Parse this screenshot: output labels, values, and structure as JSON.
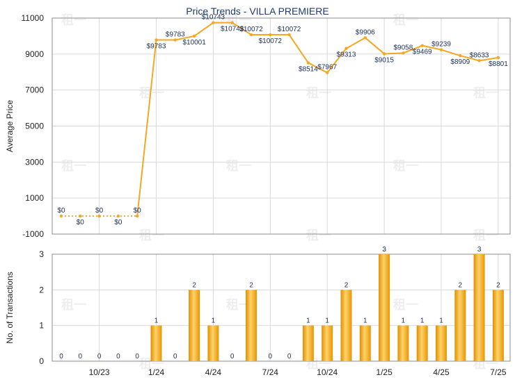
{
  "chart_data": [
    {
      "type": "line",
      "title": "Price Trends - VILLA PREMIERE",
      "ylabel": "Average Price",
      "ylim": [
        -1000,
        11000
      ],
      "yticks": [
        -1000,
        1000,
        3000,
        5000,
        7000,
        9000,
        11000
      ],
      "x": [
        "2023-08",
        "2023-09",
        "2023-10",
        "2023-11",
        "2023-12",
        "2024-01",
        "2024-02",
        "2024-03",
        "2024-04",
        "2024-05",
        "2024-06",
        "2024-07",
        "2024-08",
        "2024-09",
        "2024-10",
        "2024-11",
        "2024-12",
        "2025-01",
        "2025-02",
        "2025-03",
        "2025-04",
        "2025-05",
        "2025-06",
        "2025-07"
      ],
      "xtick_labels": [
        "10/23",
        "1/24",
        "4/24",
        "7/24",
        "10/24",
        "1/25",
        "4/25",
        "7/25"
      ],
      "xtick_months": [
        "2023-10",
        "2024-01",
        "2024-04",
        "2024-07",
        "2024-10",
        "2025-01",
        "2025-04",
        "2025-07"
      ],
      "values": [
        0,
        0,
        0,
        0,
        0,
        9783,
        9783,
        10001,
        10743,
        10743,
        10072,
        10072,
        10072,
        8514,
        7967,
        9313,
        9906,
        9015,
        9058,
        9469,
        9239,
        8909,
        8633,
        8801
      ],
      "labels": [
        "$0",
        "$0",
        "$0",
        "$0",
        "$0",
        "$9783",
        "$9783",
        "$10001",
        "$10743",
        "$10743",
        "$10072",
        "$10072",
        "$10072",
        "$8514",
        "$7967",
        "$9313",
        "$9906",
        "$9015",
        "$9058",
        "$9469",
        "$9239",
        "$8909",
        "$8633",
        "$8801"
      ],
      "color": "#f5a623"
    },
    {
      "type": "bar",
      "ylabel": "No. of Transactions",
      "ylim": [
        0,
        3
      ],
      "yticks": [
        0,
        1,
        2,
        3
      ],
      "values": [
        0,
        0,
        0,
        0,
        0,
        1,
        0,
        2,
        1,
        0,
        2,
        0,
        0,
        1,
        1,
        2,
        1,
        3,
        1,
        1,
        1,
        2,
        3,
        2
      ],
      "labels": [
        "0",
        "0",
        "0",
        "0",
        "0",
        "1",
        "0",
        "2",
        "1",
        "0",
        "2",
        "0",
        "0",
        "1",
        "1",
        "2",
        "1",
        "3",
        "1",
        "1",
        "1",
        "2",
        "3",
        "2"
      ],
      "color": "#f0a81c"
    }
  ],
  "watermark": "租一"
}
